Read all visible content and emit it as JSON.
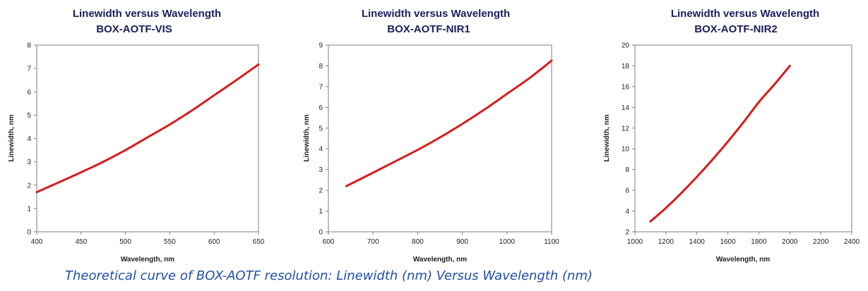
{
  "colors": {
    "series_line": "#d81b1b",
    "title_text": "#1a1f5c",
    "caption_text": "#1f4fa8",
    "frame": "#7f7f7f"
  },
  "caption": "Theoretical curve of BOX-AOTF resolution: Linewidth (nm) Versus Wavelength (nm)",
  "chart_data": [
    {
      "type": "line",
      "title": "Linewidth versus Wavelength",
      "subtitle": "BOX-AOTF-VIS",
      "xlabel": "Wavelength, nm",
      "ylabel": "Linewidth, nm",
      "xlim": [
        400,
        650
      ],
      "ylim": [
        0,
        8
      ],
      "xticks": [
        400,
        450,
        500,
        550,
        600,
        650
      ],
      "yticks": [
        0,
        1,
        2,
        3,
        4,
        5,
        6,
        7,
        8
      ],
      "grid": false,
      "legend": "none",
      "series": [
        {
          "x": [
            400,
            425,
            450,
            475,
            500,
            525,
            550,
            575,
            600,
            625,
            650
          ],
          "y": [
            1.7,
            2.12,
            2.55,
            3.0,
            3.5,
            4.05,
            4.6,
            5.2,
            5.85,
            6.5,
            7.17
          ]
        }
      ]
    },
    {
      "type": "line",
      "title": "Linewidth versus Wavelength",
      "subtitle": "BOX-AOTF-NIR1",
      "xlabel": "Wavelength, nm",
      "ylabel": "Linewidth, nm",
      "xlim": [
        600,
        1100
      ],
      "ylim": [
        0,
        9
      ],
      "xticks": [
        600,
        700,
        800,
        900,
        1000,
        1100
      ],
      "yticks": [
        0,
        1,
        2,
        3,
        4,
        5,
        6,
        7,
        8,
        9
      ],
      "grid": false,
      "legend": "none",
      "series": [
        {
          "x": [
            640,
            700,
            750,
            800,
            850,
            900,
            950,
            1000,
            1050,
            1100
          ],
          "y": [
            2.2,
            2.85,
            3.4,
            3.95,
            4.55,
            5.2,
            5.9,
            6.65,
            7.4,
            8.25
          ]
        }
      ]
    },
    {
      "type": "line",
      "title": "Linewidth versus Wavelength",
      "subtitle": "BOX-AOTF-NIR2",
      "xlabel": "Wavelength, nm",
      "ylabel": "Linewidth, nm",
      "xlim": [
        1000,
        2400
      ],
      "ylim": [
        2,
        20
      ],
      "xticks": [
        1000,
        1200,
        1400,
        1600,
        1800,
        2000,
        2200,
        2400
      ],
      "yticks": [
        2,
        4,
        6,
        8,
        10,
        12,
        14,
        16,
        18,
        20
      ],
      "grid": false,
      "legend": "none",
      "series": [
        {
          "x": [
            1100,
            1200,
            1300,
            1400,
            1500,
            1600,
            1700,
            1800,
            1900,
            2000
          ],
          "y": [
            3.0,
            4.3,
            5.75,
            7.3,
            8.95,
            10.7,
            12.55,
            14.5,
            16.2,
            18.0
          ]
        }
      ]
    }
  ]
}
